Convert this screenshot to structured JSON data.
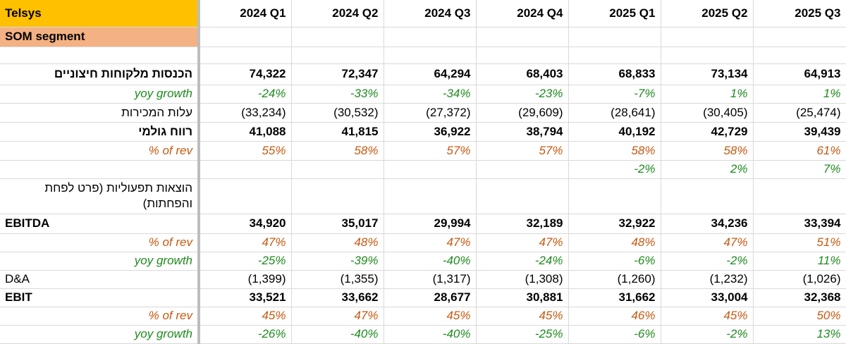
{
  "company": "Telsys",
  "segment": "SOM segment",
  "columns": [
    "2024 Q1",
    "2024 Q2",
    "2024 Q3",
    "2024 Q4",
    "2025 Q1",
    "2025 Q2",
    "2025 Q3"
  ],
  "rows": [
    {
      "label": "הכנסות מלקוחות חיצוניים",
      "values": [
        "74,322",
        "72,347",
        "64,294",
        "68,403",
        "68,833",
        "73,134",
        "64,913"
      ]
    },
    {
      "label": "yoy growth",
      "values": [
        "-24%",
        "-33%",
        "-34%",
        "-23%",
        "-7%",
        "1%",
        "1%"
      ]
    },
    {
      "label": "עלות המכירות",
      "values": [
        "(33,234)",
        "(30,532)",
        "(27,372)",
        "(29,609)",
        "(28,641)",
        "(30,405)",
        "(25,474)"
      ]
    },
    {
      "label": "רווח גולמי",
      "values": [
        "41,088",
        "41,815",
        "36,922",
        "38,794",
        "40,192",
        "42,729",
        "39,439"
      ]
    },
    {
      "label": "% of rev",
      "values": [
        "55%",
        "58%",
        "57%",
        "57%",
        "58%",
        "58%",
        "61%"
      ]
    },
    {
      "label": "",
      "values": [
        "",
        "",
        "",
        "",
        "-2%",
        "2%",
        "7%"
      ]
    },
    {
      "label": "הוצאות תפעוליות (פרט לפחת והפחתות)",
      "values": [
        "",
        "",
        "",
        "",
        "",
        "",
        ""
      ]
    },
    {
      "label": "EBITDA",
      "values": [
        "34,920",
        "35,017",
        "29,994",
        "32,189",
        "32,922",
        "34,236",
        "33,394"
      ]
    },
    {
      "label": "% of rev",
      "values": [
        "47%",
        "48%",
        "47%",
        "47%",
        "48%",
        "47%",
        "51%"
      ]
    },
    {
      "label": "yoy growth",
      "values": [
        "-25%",
        "-39%",
        "-40%",
        "-24%",
        "-6%",
        "-2%",
        "11%"
      ]
    },
    {
      "label": "D&A",
      "values": [
        "(1,399)",
        "(1,355)",
        "(1,317)",
        "(1,308)",
        "(1,260)",
        "(1,232)",
        "(1,026)"
      ]
    },
    {
      "label": "EBIT",
      "values": [
        "33,521",
        "33,662",
        "28,677",
        "30,881",
        "31,662",
        "33,004",
        "32,368"
      ]
    },
    {
      "label": "% of rev",
      "values": [
        "45%",
        "47%",
        "45%",
        "45%",
        "46%",
        "45%",
        "50%"
      ]
    },
    {
      "label": "yoy growth",
      "values": [
        "-26%",
        "-40%",
        "-40%",
        "-25%",
        "-6%",
        "-2%",
        "13%"
      ]
    }
  ],
  "colors": {
    "header_yellow": "#ffc000",
    "segment_peach": "#f4b183",
    "growth_green": "#1f8a1f",
    "margin_orange": "#c65911"
  }
}
